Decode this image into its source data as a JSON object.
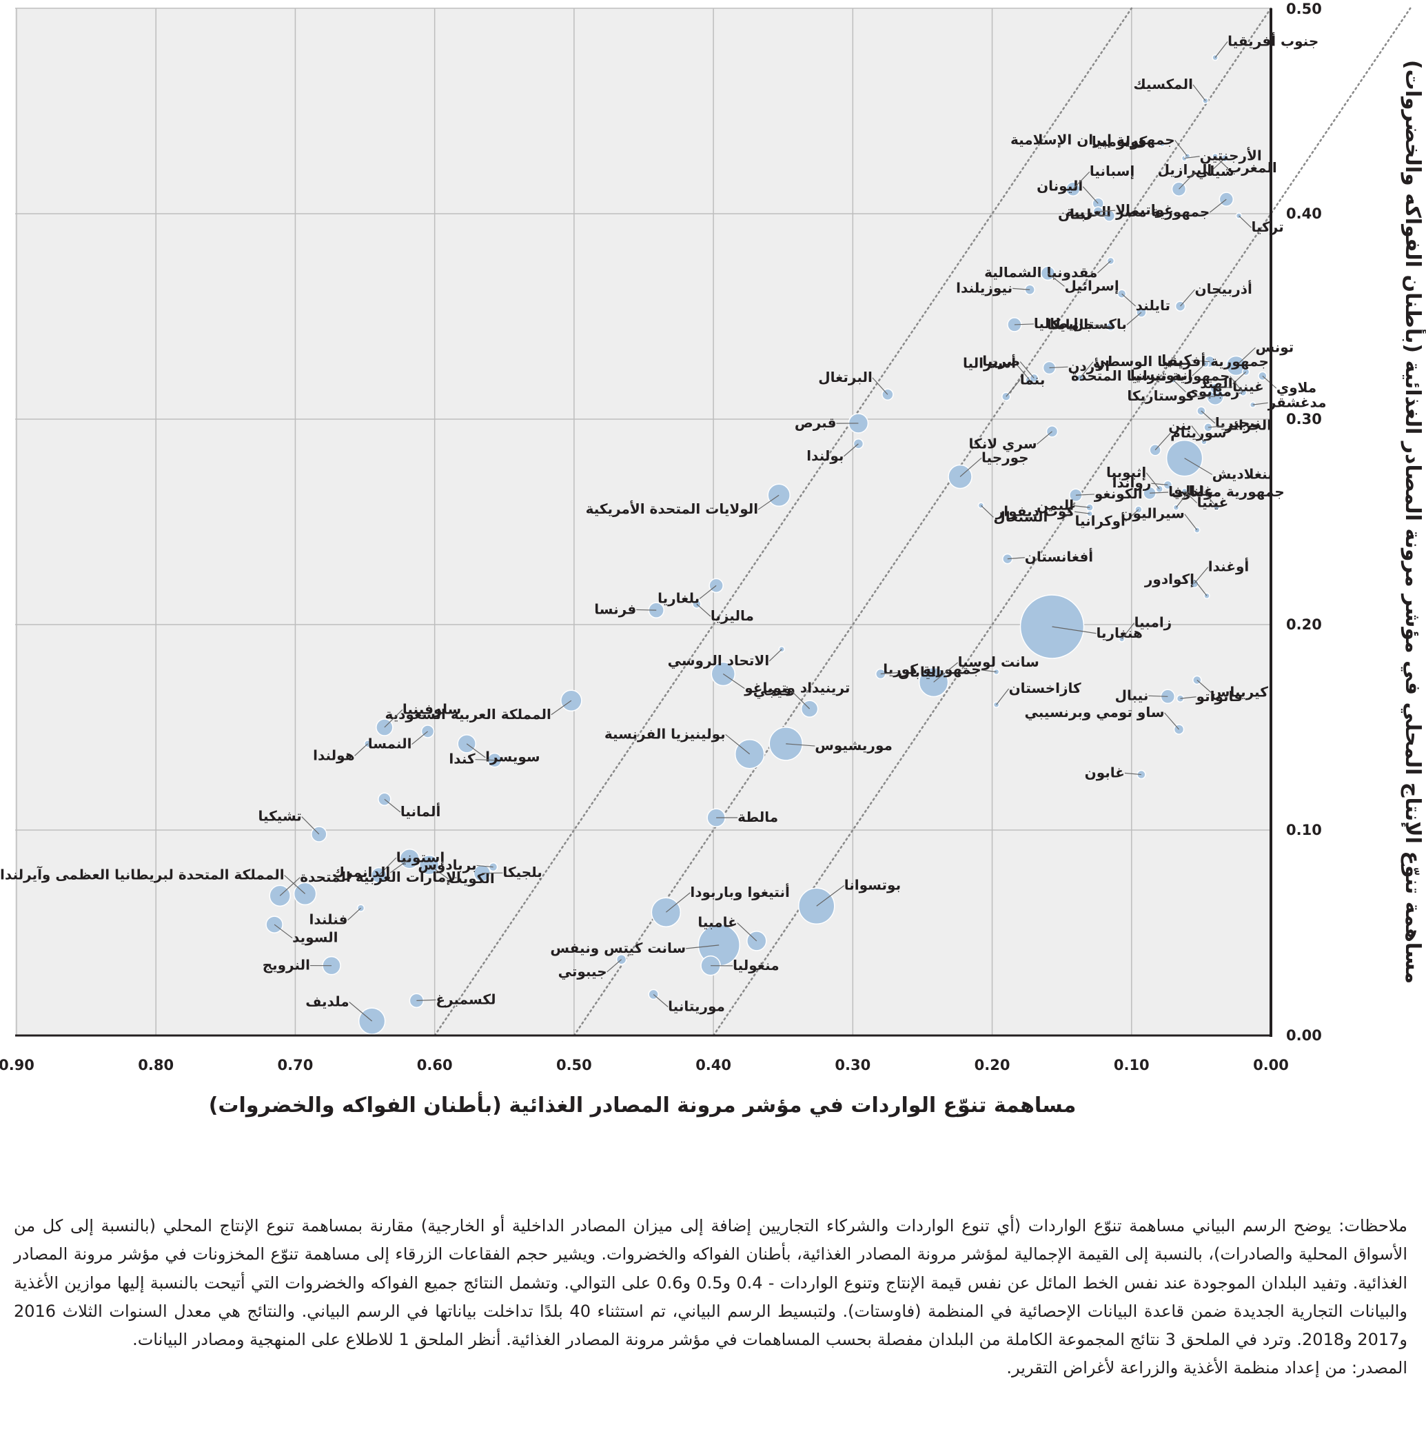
{
  "chart_data": {
    "type": "scatter",
    "title": "",
    "xlabel": "مساهمة تنوّع الواردات في مؤشر مرونة المصادر الغذائية (بأطنان الفواكه والخضروات)",
    "ylabel": "مساهمة تنوّع الإنتاج المحلي في مؤشر مرونة المصادر الغذائية (بأطنان الفواكه والخضروات)",
    "xlim": [
      0.9,
      0.0
    ],
    "ylim": [
      0.0,
      0.5
    ],
    "x_reversed": true,
    "x_ticks": [
      "0.90",
      "0.80",
      "0.70",
      "0.60",
      "0.50",
      "0.40",
      "0.30",
      "0.20",
      "0.10",
      "0.00"
    ],
    "x_tick_values": [
      0.9,
      0.8,
      0.7,
      0.6,
      0.5,
      0.4,
      0.3,
      0.2,
      0.1,
      0.0
    ],
    "y_ticks": [
      "0.00",
      "0.10",
      "0.20",
      "0.30",
      "0.40",
      "0.50"
    ],
    "y_tick_values": [
      0.0,
      0.1,
      0.2,
      0.3,
      0.4,
      0.5
    ],
    "grid": true,
    "reference_lines": [
      0.4,
      0.5,
      0.6
    ],
    "bubble_color": "#a8c4df",
    "bubble_edge_color": "#ffffff",
    "background_color": "#eeeeee",
    "grid_color": "#bdbdbd",
    "leader_color": "#666666",
    "points": [
      {
        "label": "المكسيك",
        "x": 0.047,
        "y": 0.455,
        "r": 4
      },
      {
        "label": "جنوب أفريقيا",
        "x": 0.04,
        "y": 0.476,
        "r": 4
      },
      {
        "label": "البرازيل",
        "x": 0.033,
        "y": 0.427,
        "r": 5
      },
      {
        "label": "المغرب",
        "x": 0.04,
        "y": 0.428,
        "r": 4
      },
      {
        "label": "كولومبيا",
        "x": 0.078,
        "y": 0.434,
        "r": 4
      },
      {
        "label": "الأرجنتين",
        "x": 0.062,
        "y": 0.427,
        "r": 4
      },
      {
        "label": "اليونان",
        "x": 0.124,
        "y": 0.405,
        "r": 8
      },
      {
        "label": "إسبانيا",
        "x": 0.142,
        "y": 0.412,
        "r": 10
      },
      {
        "label": "مقدونيا الشمالية",
        "x": 0.115,
        "y": 0.377,
        "r": 5
      },
      {
        "label": "إسرائيل",
        "x": 0.16,
        "y": 0.371,
        "r": 10
      },
      {
        "label": "نيوزيلندا",
        "x": 0.173,
        "y": 0.363,
        "r": 7
      },
      {
        "label": "إيطاليا",
        "x": 0.184,
        "y": 0.346,
        "r": 10
      },
      {
        "label": "أستراليا",
        "x": 0.173,
        "y": 0.319,
        "r": 6
      },
      {
        "label": "شيلي",
        "x": 0.066,
        "y": 0.412,
        "r": 10
      },
      {
        "label": "جمهورية مصر العربية",
        "x": 0.032,
        "y": 0.407,
        "r": 10
      },
      {
        "label": "تركيا",
        "x": 0.023,
        "y": 0.399,
        "r": 4
      },
      {
        "label": "لبنان",
        "x": 0.116,
        "y": 0.399,
        "r": 8
      },
      {
        "label": "غواتيمالا",
        "x": 0.124,
        "y": 0.401,
        "r": 7
      },
      {
        "label": "جمهورية إيران الإسلامية",
        "x": 0.06,
        "y": 0.428,
        "r": 4
      },
      {
        "label": "أذربيجان",
        "x": 0.065,
        "y": 0.355,
        "r": 7
      },
      {
        "label": "باكستان",
        "x": 0.093,
        "y": 0.352,
        "r": 7
      },
      {
        "label": "تايلند",
        "x": 0.107,
        "y": 0.361,
        "r": 6
      },
      {
        "label": "جامايكا",
        "x": 0.115,
        "y": 0.345,
        "r": 6
      },
      {
        "label": "الأردن",
        "x": 0.159,
        "y": 0.325,
        "r": 9
      },
      {
        "label": "صربيا",
        "x": 0.17,
        "y": 0.32,
        "r": 6
      },
      {
        "label": "تونس",
        "x": 0.025,
        "y": 0.326,
        "r": 14
      },
      {
        "label": "الهند",
        "x": 0.018,
        "y": 0.323,
        "r": 5
      },
      {
        "label": "ملاوي",
        "x": 0.006,
        "y": 0.321,
        "r": 6
      },
      {
        "label": "كينيا",
        "x": 0.044,
        "y": 0.328,
        "r": 8
      },
      {
        "label": "غينيا",
        "x": 0.04,
        "y": 0.315,
        "r": 7
      },
      {
        "label": "جمهورية تنزانيا المتحدة",
        "x": 0.02,
        "y": 0.313,
        "r": 5
      },
      {
        "label": "جمهورية أفريقيا الوسطى",
        "x": 0.137,
        "y": 0.32,
        "r": 5
      },
      {
        "label": "إندونيسيا",
        "x": 0.047,
        "y": 0.327,
        "r": 5
      },
      {
        "label": "زمبابوي",
        "x": 0.07,
        "y": 0.319,
        "r": 4
      },
      {
        "label": "كوستاريكا",
        "x": 0.04,
        "y": 0.311,
        "r": 12
      },
      {
        "label": "مدغشقر",
        "x": 0.013,
        "y": 0.307,
        "r": 4
      },
      {
        "label": "البرتغال",
        "x": 0.275,
        "y": 0.312,
        "r": 8
      },
      {
        "label": "بنما",
        "x": 0.19,
        "y": 0.311,
        "r": 6
      },
      {
        "label": "سري لانكا",
        "x": 0.157,
        "y": 0.294,
        "r": 8
      },
      {
        "label": "نيجيريا",
        "x": 0.05,
        "y": 0.304,
        "r": 6
      },
      {
        "label": "قبرص",
        "x": 0.296,
        "y": 0.298,
        "r": 14
      },
      {
        "label": "الجزائر",
        "x": 0.045,
        "y": 0.296,
        "r": 6
      },
      {
        "label": "بنن",
        "x": 0.048,
        "y": 0.289,
        "r": 4
      },
      {
        "label": "سورينام",
        "x": 0.083,
        "y": 0.285,
        "r": 8
      },
      {
        "label": "بولندا",
        "x": 0.296,
        "y": 0.288,
        "r": 7
      },
      {
        "label": "بنغلاديش",
        "x": 0.062,
        "y": 0.281,
        "r": 26
      },
      {
        "label": "رواندا",
        "x": 0.074,
        "y": 0.268,
        "r": 6
      },
      {
        "label": "جمهورية مولدوفا",
        "x": 0.087,
        "y": 0.264,
        "r": 9
      },
      {
        "label": "إثيوبيا",
        "x": 0.08,
        "y": 0.266,
        "r": 5
      },
      {
        "label": "جورجيا",
        "x": 0.223,
        "y": 0.272,
        "r": 17
      },
      {
        "label": "الولايات المتحدة الأمريكية",
        "x": 0.353,
        "y": 0.263,
        "r": 16
      },
      {
        "label": "السنغال",
        "x": 0.208,
        "y": 0.258,
        "r": 4
      },
      {
        "label": "اليمن",
        "x": 0.13,
        "y": 0.257,
        "r": 5
      },
      {
        "label": "الكونغو",
        "x": 0.14,
        "y": 0.263,
        "r": 9
      },
      {
        "label": "مالي",
        "x": 0.039,
        "y": 0.257,
        "r": 4
      },
      {
        "label": "غانا",
        "x": 0.068,
        "y": 0.257,
        "r": 4
      },
      {
        "label": "أوكرانيا",
        "x": 0.095,
        "y": 0.256,
        "r": 5
      },
      {
        "label": "غينيا",
        "x": 0.062,
        "y": 0.265,
        "r": 4
      },
      {
        "label": "كوت ديفوار",
        "x": 0.13,
        "y": 0.254,
        "r": 4
      },
      {
        "label": "أفغانستان",
        "x": 0.189,
        "y": 0.232,
        "r": 7
      },
      {
        "label": "سيراليون",
        "x": 0.053,
        "y": 0.246,
        "r": 4
      },
      {
        "label": "أوغندا",
        "x": 0.055,
        "y": 0.22,
        "r": 6
      },
      {
        "label": "بلغاريا",
        "x": 0.398,
        "y": 0.219,
        "r": 10
      },
      {
        "label": "ماليزيا",
        "x": 0.412,
        "y": 0.21,
        "r": 6
      },
      {
        "label": "فرنسا",
        "x": 0.441,
        "y": 0.207,
        "r": 11
      },
      {
        "label": "هنغاريا",
        "x": 0.157,
        "y": 0.199,
        "r": 46
      },
      {
        "label": "إكوادور",
        "x": 0.046,
        "y": 0.214,
        "r": 4
      },
      {
        "label": "زامبيا",
        "x": 0.107,
        "y": 0.193,
        "r": 4
      },
      {
        "label": "الاتحاد الروسي",
        "x": 0.351,
        "y": 0.188,
        "r": 4
      },
      {
        "label": "ترينيداد وتوباغو",
        "x": 0.393,
        "y": 0.176,
        "r": 17
      },
      {
        "label": "جمهورية كوريا",
        "x": 0.197,
        "y": 0.177,
        "r": 4
      },
      {
        "label": "اليابان",
        "x": 0.28,
        "y": 0.176,
        "r": 7
      },
      {
        "label": "فيجي",
        "x": 0.331,
        "y": 0.159,
        "r": 12
      },
      {
        "label": "سانت لوسيا",
        "x": 0.242,
        "y": 0.172,
        "r": 21
      },
      {
        "label": "المملكة العربية السعودية",
        "x": 0.502,
        "y": 0.163,
        "r": 15
      },
      {
        "label": "كيريباس",
        "x": 0.053,
        "y": 0.173,
        "r": 6
      },
      {
        "label": "نيبال",
        "x": 0.074,
        "y": 0.165,
        "r": 10
      },
      {
        "label": "فانواتو",
        "x": 0.065,
        "y": 0.164,
        "r": 5
      },
      {
        "label": "ساو تومي وبرنسيبي",
        "x": 0.066,
        "y": 0.149,
        "r": 7
      },
      {
        "label": "سلوفينيا",
        "x": 0.636,
        "y": 0.15,
        "r": 12
      },
      {
        "label": "النمسا",
        "x": 0.605,
        "y": 0.148,
        "r": 9
      },
      {
        "label": "سويسرا",
        "x": 0.577,
        "y": 0.142,
        "r": 13
      },
      {
        "label": "كندا",
        "x": 0.557,
        "y": 0.134,
        "r": 10
      },
      {
        "label": "موريشيوس",
        "x": 0.348,
        "y": 0.142,
        "r": 24
      },
      {
        "label": "بولينيزيا الفرنسية",
        "x": 0.374,
        "y": 0.137,
        "r": 21
      },
      {
        "label": "كازاخستان",
        "x": 0.197,
        "y": 0.161,
        "r": 4
      },
      {
        "label": "هولندا",
        "x": 0.648,
        "y": 0.142,
        "r": 5
      },
      {
        "label": "ألمانيا",
        "x": 0.636,
        "y": 0.115,
        "r": 9
      },
      {
        "label": "غابون",
        "x": 0.093,
        "y": 0.127,
        "r": 6
      },
      {
        "label": "مالطة",
        "x": 0.398,
        "y": 0.106,
        "r": 13
      },
      {
        "label": "تشيكيا",
        "x": 0.683,
        "y": 0.098,
        "r": 11
      },
      {
        "label": "إستونيا",
        "x": 0.64,
        "y": 0.078,
        "r": 11
      },
      {
        "label": "الدانمرك",
        "x": 0.618,
        "y": 0.086,
        "r": 14
      },
      {
        "label": "الكويت",
        "x": 0.604,
        "y": 0.083,
        "r": 14
      },
      {
        "label": "بربادوس",
        "x": 0.558,
        "y": 0.082,
        "r": 6
      },
      {
        "label": "بلجيكا",
        "x": 0.566,
        "y": 0.079,
        "r": 12
      },
      {
        "label": "المملكة المتحدة لبريطانيا العظمى وآيرلندا الشمالية",
        "x": 0.693,
        "y": 0.069,
        "r": 16
      },
      {
        "label": "الإمارات العربية المتحدة",
        "x": 0.711,
        "y": 0.068,
        "r": 15
      },
      {
        "label": "فنلندا",
        "x": 0.653,
        "y": 0.062,
        "r": 5
      },
      {
        "label": "السويد",
        "x": 0.715,
        "y": 0.054,
        "r": 12
      },
      {
        "label": "النرويج",
        "x": 0.674,
        "y": 0.034,
        "r": 13
      },
      {
        "label": "لكسمبرغ",
        "x": 0.613,
        "y": 0.017,
        "r": 10
      },
      {
        "label": "ملديف",
        "x": 0.645,
        "y": 0.007,
        "r": 19
      },
      {
        "label": "أنتيغوا وباربودا",
        "x": 0.434,
        "y": 0.06,
        "r": 21
      },
      {
        "label": "جيبوتي",
        "x": 0.466,
        "y": 0.037,
        "r": 7
      },
      {
        "label": "موريتانيا",
        "x": 0.443,
        "y": 0.02,
        "r": 7
      },
      {
        "label": "سانت كيتس ونيفس",
        "x": 0.396,
        "y": 0.044,
        "r": 30
      },
      {
        "label": "منغوليا",
        "x": 0.402,
        "y": 0.034,
        "r": 14
      },
      {
        "label": "غامبيا",
        "x": 0.369,
        "y": 0.046,
        "r": 14
      },
      {
        "label": "بوتسوانا",
        "x": 0.326,
        "y": 0.063,
        "r": 26
      }
    ]
  },
  "notes": {
    "text": "ملاحظات: يوضح الرسم البياني مساهمة تنوّع الواردات (أي تنوع الواردات والشركاء التجاريين إضافة إلى ميزان المصادر الداخلية أو الخارجية) مقارنة بمساهمة تنوع الإنتاج المحلي (بالنسبة إلى كل من الأسواق المحلية والصادرات)، بالنسبة إلى القيمة الإجمالية لمؤشر مرونة المصادر الغذائية، بأطنان الفواكه والخضروات. ويشير حجم الفقاعات الزرقاء إلى مساهمة تنوّع المخزونات في مؤشر مرونة المصادر الغذائية. وتفيد البلدان الموجودة عند نفس الخط المائل عن نفس قيمة الإنتاج وتنوع الواردات - 0.4 و0.5 و0.6 على التوالي. وتشمل النتائج جميع الفواكه والخضروات التي أتيحت بالنسبة إليها موازين الأغذية والبيانات التجارية الجديدة ضمن قاعدة البيانات الإحصائية في المنظمة (فاوستات). ولتبسيط الرسم البياني، تم استثناء 40 بلدًا تداخلت بياناتها في الرسم البياني. والنتائج هي معدل السنوات الثلاث 2016 و2017 و2018. وترد في الملحق 3 نتائج المجموعة الكاملة من البلدان مفصلة بحسب المساهمات في مؤشر مرونة المصادر الغذائية. أنظر الملحق 1 للاطلاع على المنهجية ومصادر البيانات.",
    "source": "المصدر: من إعداد منظمة الأغذية والزراعة لأغراض التقرير."
  }
}
